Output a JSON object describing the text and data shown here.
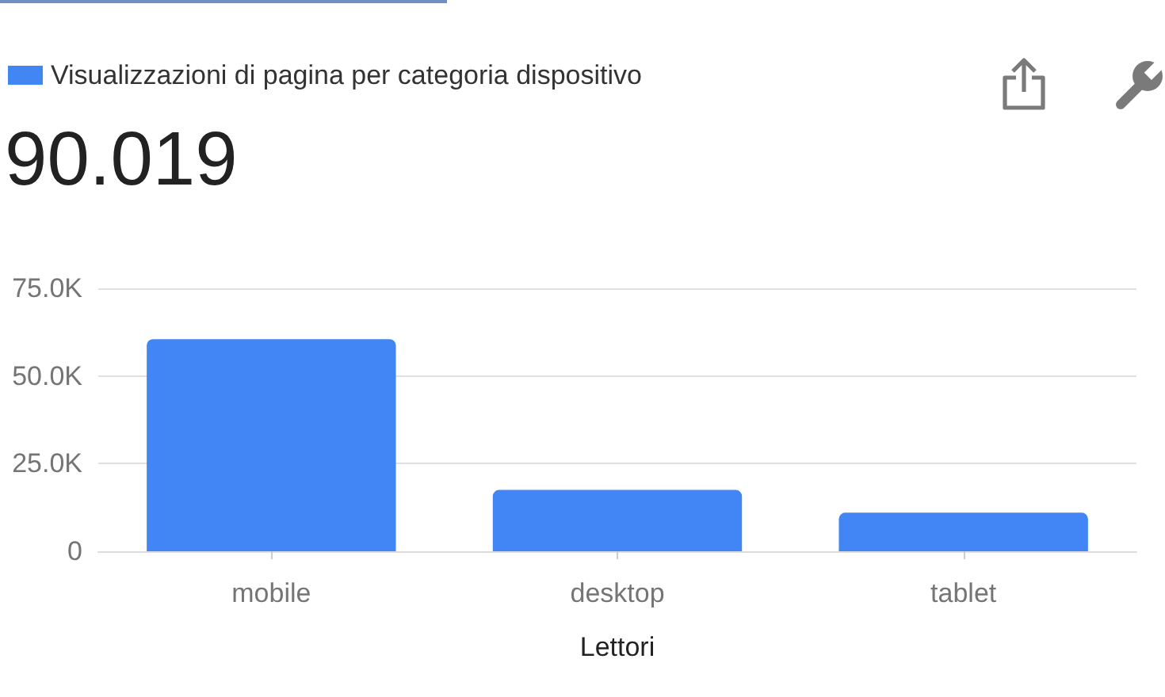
{
  "chart_data": {
    "type": "bar",
    "annotations": [
      "90.019"
    ],
    "xlabel": "Lettori",
    "categories": [
      "mobile",
      "desktop",
      "tablet"
    ],
    "series": [
      {
        "name": "Visualizzazioni di pagina per categoria dispositivo",
        "color": "#4285f4",
        "values": [
          60500,
          17500,
          11000
        ]
      }
    ],
    "ylim": [
      0,
      75000
    ],
    "yticks": [
      0,
      {
        "value": 25000,
        "label": "25.0K"
      },
      {
        "value": 50000,
        "label": "50.0K"
      },
      {
        "value": 75000,
        "label": "75.0K"
      }
    ],
    "grid": "y",
    "legend": "top left"
  }
}
